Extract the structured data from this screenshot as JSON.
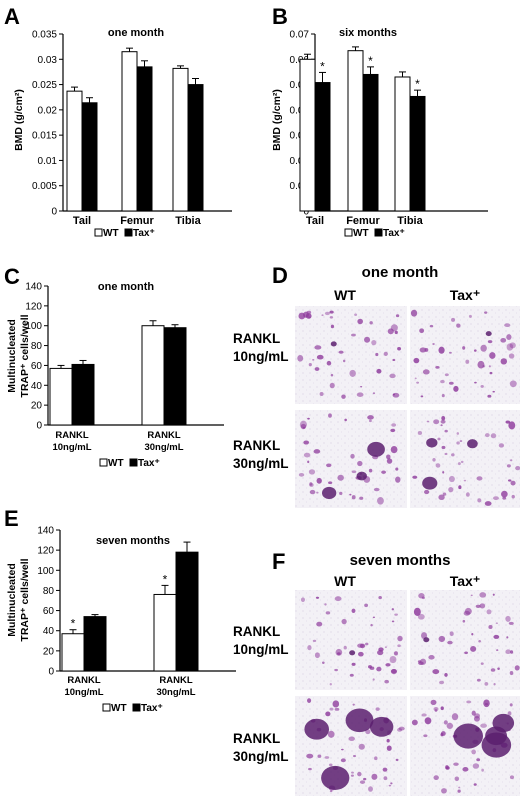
{
  "chart_data": [
    {
      "panel": "A",
      "type": "bar",
      "title": "one month",
      "ylabel": "BMD (g/cm²)",
      "ylim": [
        0,
        0.035
      ],
      "yticks": [
        "0",
        "0.005",
        "0.01",
        "0.015",
        "0.02",
        "0.025",
        "0.03",
        "0.035"
      ],
      "categories": [
        "Tail",
        "Femur",
        "Tibia"
      ],
      "legend": [
        "WT",
        "Tax⁺"
      ],
      "series": [
        {
          "name": "WT",
          "color": "#ffffff",
          "values": [
            0.0237,
            0.0315,
            0.0282
          ],
          "errors": [
            0.0008,
            0.0007,
            0.0005
          ],
          "stars": [
            "",
            "",
            ""
          ]
        },
        {
          "name": "Tax⁺",
          "color": "#000000",
          "values": [
            0.0214,
            0.0285,
            0.025
          ],
          "errors": [
            0.001,
            0.0012,
            0.0012
          ],
          "stars": [
            "",
            "",
            ""
          ]
        }
      ]
    },
    {
      "panel": "B",
      "type": "bar",
      "title": "six months",
      "ylabel": "BMD (g/cm²)",
      "ylim": [
        0,
        0.07
      ],
      "yticks": [
        "0",
        "0.01",
        "0.02",
        "0.03",
        "0.04",
        "0.05",
        "0.06",
        "0.07"
      ],
      "categories": [
        "Tail",
        "Femur",
        "Tibia"
      ],
      "legend": [
        "WT",
        "Tax⁺"
      ],
      "series": [
        {
          "name": "WT",
          "color": "#ffffff",
          "values": [
            0.06,
            0.0634,
            0.053
          ],
          "errors": [
            0.002,
            0.0015,
            0.002
          ],
          "stars": [
            "",
            "",
            ""
          ]
        },
        {
          "name": "Tax⁺",
          "color": "#000000",
          "values": [
            0.0508,
            0.054,
            0.0453
          ],
          "errors": [
            0.004,
            0.003,
            0.0025
          ],
          "stars": [
            "*",
            "*",
            "*"
          ]
        }
      ]
    },
    {
      "panel": "C",
      "type": "bar",
      "title": "one month",
      "ylabel": "Multinucleated TRAP⁺ cells/well",
      "ylim": [
        0,
        140
      ],
      "yticks": [
        "0",
        "20",
        "40",
        "60",
        "80",
        "100",
        "120",
        "140"
      ],
      "categories": [
        "RANKL 10ng/mL",
        "RANKL 30ng/mL"
      ],
      "legend": [
        "WT",
        "Tax⁺"
      ],
      "series": [
        {
          "name": "WT",
          "color": "#ffffff",
          "values": [
            57,
            100
          ],
          "errors": [
            3,
            5
          ],
          "stars": [
            "",
            ""
          ]
        },
        {
          "name": "Tax⁺",
          "color": "#000000",
          "values": [
            61,
            98
          ],
          "errors": [
            4,
            3
          ],
          "stars": [
            "",
            ""
          ]
        }
      ]
    },
    {
      "panel": "E",
      "type": "bar",
      "title": "seven months",
      "ylabel": "Multinucleated TRAP⁺ cells/well",
      "ylim": [
        0,
        140
      ],
      "yticks": [
        "0",
        "20",
        "40",
        "60",
        "80",
        "100",
        "120",
        "140"
      ],
      "categories": [
        "RANKL 10ng/mL",
        "RANKL 30ng/mL"
      ],
      "legend": [
        "WT",
        "Tax⁺"
      ],
      "series": [
        {
          "name": "WT",
          "color": "#ffffff",
          "values": [
            37,
            76
          ],
          "errors": [
            4,
            9
          ],
          "stars": [
            "*",
            "*"
          ]
        },
        {
          "name": "Tax⁺",
          "color": "#000000",
          "values": [
            54,
            118
          ],
          "errors": [
            2,
            10
          ],
          "stars": [
            "",
            ""
          ]
        }
      ]
    }
  ],
  "micrographs": [
    {
      "panel": "D",
      "title": "one month",
      "columns": [
        "WT",
        "Tax⁺"
      ],
      "rows": [
        {
          "label_line1": "RANKL",
          "label_line2": "10ng/mL"
        },
        {
          "label_line1": "RANKL",
          "label_line2": "30ng/mL"
        }
      ],
      "stain_color": "#8e3a9c"
    },
    {
      "panel": "F",
      "title": "seven months",
      "columns": [
        "WT",
        "Tax⁺"
      ],
      "rows": [
        {
          "label_line1": "RANKL",
          "label_line2": "10ng/mL"
        },
        {
          "label_line1": "RANKL",
          "label_line2": "30ng/mL"
        }
      ],
      "stain_color": "#8e3a9c"
    }
  ]
}
